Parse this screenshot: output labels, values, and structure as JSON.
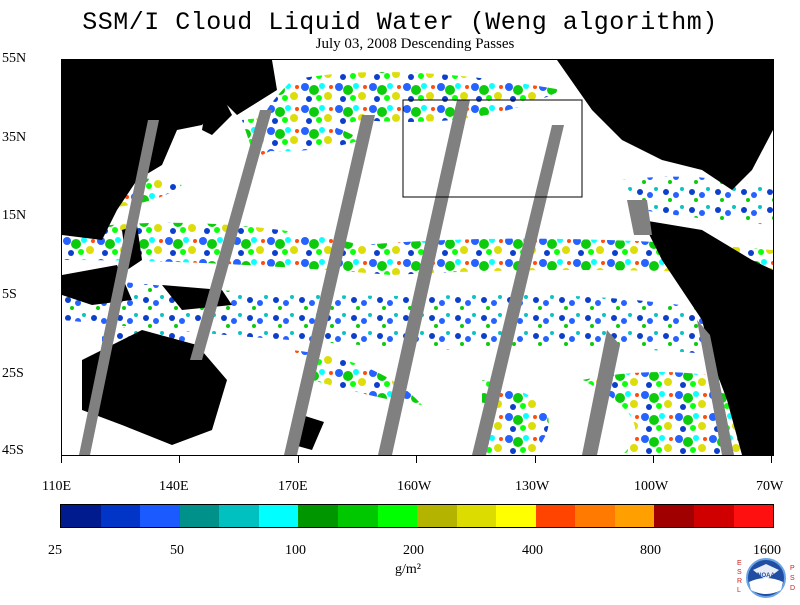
{
  "title": "SSM/I Cloud Liquid Water (Weng algorithm)",
  "subtitle": "July 03, 2008  Descending Passes",
  "lat_labels": [
    "55N",
    "35N",
    "15N",
    "5S",
    "25S",
    "45S"
  ],
  "lon_labels": [
    "110E",
    "140E",
    "170E",
    "160W",
    "130W",
    "100W",
    "70W"
  ],
  "colorbar": {
    "colors": [
      "#001b8e",
      "#0035c8",
      "#1a5aff",
      "#00928a",
      "#00c0c0",
      "#00ffff",
      "#009600",
      "#00c800",
      "#00ff00",
      "#b4b400",
      "#dcdc00",
      "#ffff00",
      "#ff4400",
      "#ff7a00",
      "#ffa000",
      "#a00000",
      "#d00000",
      "#ff1010"
    ],
    "tick_labels": [
      "25",
      "50",
      "100",
      "200",
      "400",
      "800",
      "1600"
    ]
  },
  "units": "g/m²",
  "logo_letters": [
    "E",
    "S",
    "R",
    "L",
    "P",
    "S",
    "D",
    "NOAA"
  ],
  "colors": {
    "land": "#000000",
    "missing": "#808080",
    "background": "#ffffff"
  }
}
